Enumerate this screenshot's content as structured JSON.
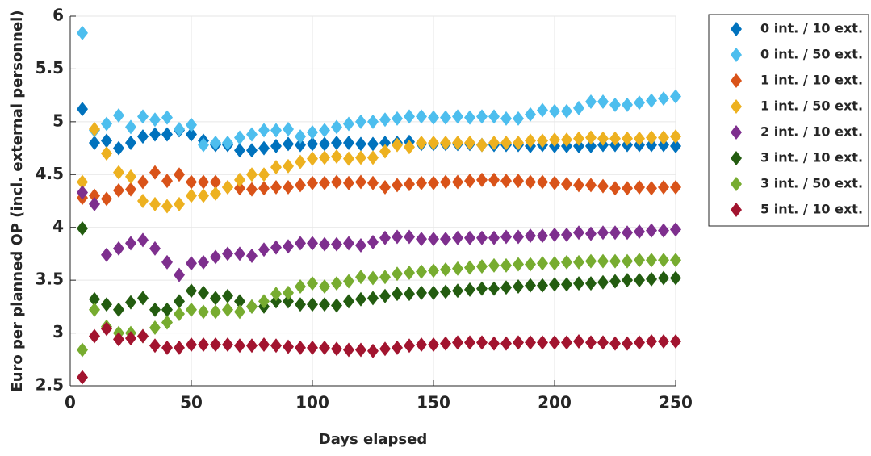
{
  "chart_data": {
    "type": "scatter",
    "xlabel": "Days elapsed",
    "ylabel": "Euro per planned OP (incl. external personnel)",
    "xlim": [
      0,
      250
    ],
    "ylim": [
      2.5,
      6
    ],
    "xticks": [
      0,
      50,
      100,
      150,
      200,
      250
    ],
    "yticks": [
      2.5,
      3,
      3.5,
      4,
      4.5,
      5,
      5.5,
      6
    ],
    "grid": true,
    "legend": "outside-right",
    "x": [
      5,
      10,
      15,
      20,
      25,
      30,
      35,
      40,
      45,
      50,
      55,
      60,
      65,
      70,
      75,
      80,
      85,
      90,
      95,
      100,
      105,
      110,
      115,
      120,
      125,
      130,
      135,
      140,
      145,
      150,
      155,
      160,
      165,
      170,
      175,
      180,
      185,
      190,
      195,
      200,
      205,
      210,
      215,
      220,
      225,
      230,
      235,
      240,
      245,
      250
    ],
    "series": [
      {
        "name": "0 int. / 10 ext.",
        "color": "#0072BD",
        "values": [
          5.12,
          4.8,
          4.82,
          4.75,
          4.8,
          4.86,
          4.88,
          4.88,
          4.92,
          4.88,
          4.82,
          4.78,
          4.78,
          4.73,
          4.73,
          4.75,
          4.77,
          4.79,
          4.78,
          4.79,
          4.79,
          4.8,
          4.8,
          4.79,
          4.79,
          4.8,
          4.8,
          4.81,
          4.79,
          4.79,
          4.79,
          4.79,
          4.79,
          4.78,
          4.78,
          4.78,
          4.78,
          4.77,
          4.78,
          4.77,
          4.77,
          4.77,
          4.77,
          4.78,
          4.78,
          4.78,
          4.78,
          4.78,
          4.78,
          4.77
        ]
      },
      {
        "name": "0 int. / 50 ext.",
        "color": "#4DBEEE",
        "values": [
          5.84,
          4.92,
          4.98,
          5.06,
          4.95,
          5.05,
          5.02,
          5.04,
          4.93,
          4.97,
          4.78,
          4.8,
          4.8,
          4.85,
          4.88,
          4.92,
          4.92,
          4.93,
          4.86,
          4.9,
          4.92,
          4.95,
          4.98,
          5.0,
          5.0,
          5.02,
          5.03,
          5.05,
          5.05,
          5.04,
          5.04,
          5.05,
          5.04,
          5.05,
          5.05,
          5.03,
          5.03,
          5.07,
          5.11,
          5.1,
          5.1,
          5.13,
          5.19,
          5.19,
          5.16,
          5.16,
          5.18,
          5.2,
          5.22,
          5.24
        ]
      },
      {
        "name": "1 int. / 10 ext.",
        "color": "#D95319",
        "values": [
          4.28,
          4.3,
          4.27,
          4.35,
          4.36,
          4.43,
          4.52,
          4.44,
          4.5,
          4.43,
          4.43,
          4.43,
          4.38,
          4.37,
          4.36,
          4.37,
          4.38,
          4.38,
          4.4,
          4.42,
          4.42,
          4.43,
          4.42,
          4.43,
          4.42,
          4.38,
          4.4,
          4.41,
          4.42,
          4.42,
          4.43,
          4.43,
          4.44,
          4.45,
          4.45,
          4.44,
          4.44,
          4.43,
          4.43,
          4.42,
          4.41,
          4.4,
          4.4,
          4.39,
          4.37,
          4.37,
          4.38,
          4.37,
          4.38,
          4.38
        ]
      },
      {
        "name": "1 int. / 50 ext.",
        "color": "#EDB120",
        "values": [
          4.43,
          4.93,
          4.7,
          4.52,
          4.48,
          4.25,
          4.22,
          4.2,
          4.22,
          4.3,
          4.3,
          4.32,
          4.38,
          4.45,
          4.5,
          4.5,
          4.57,
          4.58,
          4.62,
          4.65,
          4.66,
          4.67,
          4.65,
          4.66,
          4.66,
          4.72,
          4.78,
          4.76,
          4.8,
          4.8,
          4.8,
          4.8,
          4.8,
          4.78,
          4.8,
          4.8,
          4.8,
          4.82,
          4.82,
          4.83,
          4.83,
          4.84,
          4.85,
          4.84,
          4.84,
          4.84,
          4.84,
          4.85,
          4.85,
          4.86
        ]
      },
      {
        "name": "2 int. / 10 ext.",
        "color": "#7E2F8E",
        "values": [
          4.33,
          4.22,
          3.74,
          3.8,
          3.85,
          3.88,
          3.8,
          3.67,
          3.55,
          3.66,
          3.67,
          3.72,
          3.75,
          3.75,
          3.73,
          3.79,
          3.81,
          3.82,
          3.85,
          3.85,
          3.84,
          3.84,
          3.85,
          3.83,
          3.86,
          3.9,
          3.91,
          3.91,
          3.89,
          3.89,
          3.89,
          3.9,
          3.9,
          3.9,
          3.9,
          3.91,
          3.91,
          3.92,
          3.92,
          3.93,
          3.93,
          3.95,
          3.94,
          3.95,
          3.95,
          3.95,
          3.96,
          3.97,
          3.97,
          3.98
        ]
      },
      {
        "name": "3 int. / 10 ext.",
        "color": "#235C10",
        "values": [
          3.99,
          3.32,
          3.27,
          3.22,
          3.29,
          3.33,
          3.22,
          3.22,
          3.3,
          3.4,
          3.38,
          3.33,
          3.35,
          3.3,
          3.25,
          3.25,
          3.3,
          3.3,
          3.27,
          3.27,
          3.27,
          3.26,
          3.3,
          3.32,
          3.33,
          3.35,
          3.37,
          3.37,
          3.38,
          3.38,
          3.39,
          3.4,
          3.41,
          3.42,
          3.42,
          3.43,
          3.44,
          3.45,
          3.45,
          3.46,
          3.46,
          3.47,
          3.47,
          3.48,
          3.49,
          3.5,
          3.5,
          3.51,
          3.52,
          3.52
        ]
      },
      {
        "name": "3 int. / 50 ext.",
        "color": "#77AC30",
        "values": [
          2.84,
          3.22,
          3.06,
          3.0,
          3.0,
          2.97,
          3.05,
          3.1,
          3.18,
          3.22,
          3.2,
          3.2,
          3.22,
          3.2,
          3.25,
          3.3,
          3.37,
          3.38,
          3.44,
          3.47,
          3.44,
          3.47,
          3.49,
          3.53,
          3.52,
          3.53,
          3.56,
          3.57,
          3.58,
          3.59,
          3.6,
          3.61,
          3.62,
          3.63,
          3.64,
          3.64,
          3.65,
          3.65,
          3.66,
          3.66,
          3.67,
          3.67,
          3.68,
          3.68,
          3.68,
          3.68,
          3.69,
          3.69,
          3.69,
          3.69
        ]
      },
      {
        "name": "5 int. / 10 ext.",
        "color": "#A2142F",
        "values": [
          2.58,
          2.97,
          3.04,
          2.94,
          2.95,
          2.97,
          2.88,
          2.86,
          2.86,
          2.89,
          2.89,
          2.89,
          2.89,
          2.88,
          2.88,
          2.89,
          2.88,
          2.87,
          2.86,
          2.86,
          2.86,
          2.85,
          2.84,
          2.84,
          2.83,
          2.85,
          2.86,
          2.88,
          2.89,
          2.89,
          2.9,
          2.91,
          2.91,
          2.91,
          2.9,
          2.9,
          2.91,
          2.91,
          2.91,
          2.91,
          2.91,
          2.92,
          2.91,
          2.91,
          2.9,
          2.9,
          2.91,
          2.92,
          2.92,
          2.92
        ]
      }
    ]
  }
}
